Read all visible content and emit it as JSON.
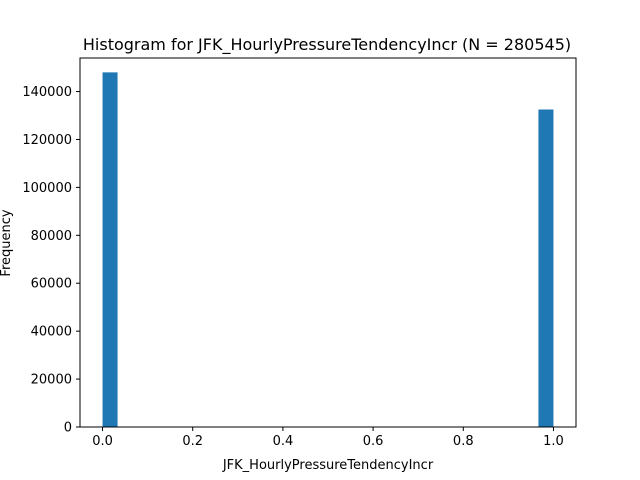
{
  "chart_data": {
    "type": "bar",
    "title": "Histogram for JFK_HourlyPressureTendencyIncr (N = 280545)",
    "xlabel": "JFK_HourlyPressureTendencyIncr",
    "ylabel": "Frequency",
    "xlim": [
      -0.05,
      1.05
    ],
    "ylim": [
      0,
      154000
    ],
    "xticks": [
      0.0,
      0.2,
      0.4,
      0.6,
      0.8,
      1.0
    ],
    "xtick_labels": [
      "0.0",
      "0.2",
      "0.4",
      "0.6",
      "0.8",
      "1.0"
    ],
    "yticks": [
      0,
      20000,
      40000,
      60000,
      80000,
      100000,
      120000,
      140000
    ],
    "ytick_labels": [
      "0",
      "20000",
      "40000",
      "60000",
      "80000",
      "100000",
      "120000",
      "140000"
    ],
    "bins": 30,
    "bin_width": 0.0333,
    "bars": [
      {
        "x_start": 0.0,
        "x_end": 0.0333,
        "count": 148000
      },
      {
        "x_start": 0.9667,
        "x_end": 1.0,
        "count": 132500
      }
    ],
    "bar_color": "#1f77b4",
    "grid": false,
    "legend": "none"
  }
}
